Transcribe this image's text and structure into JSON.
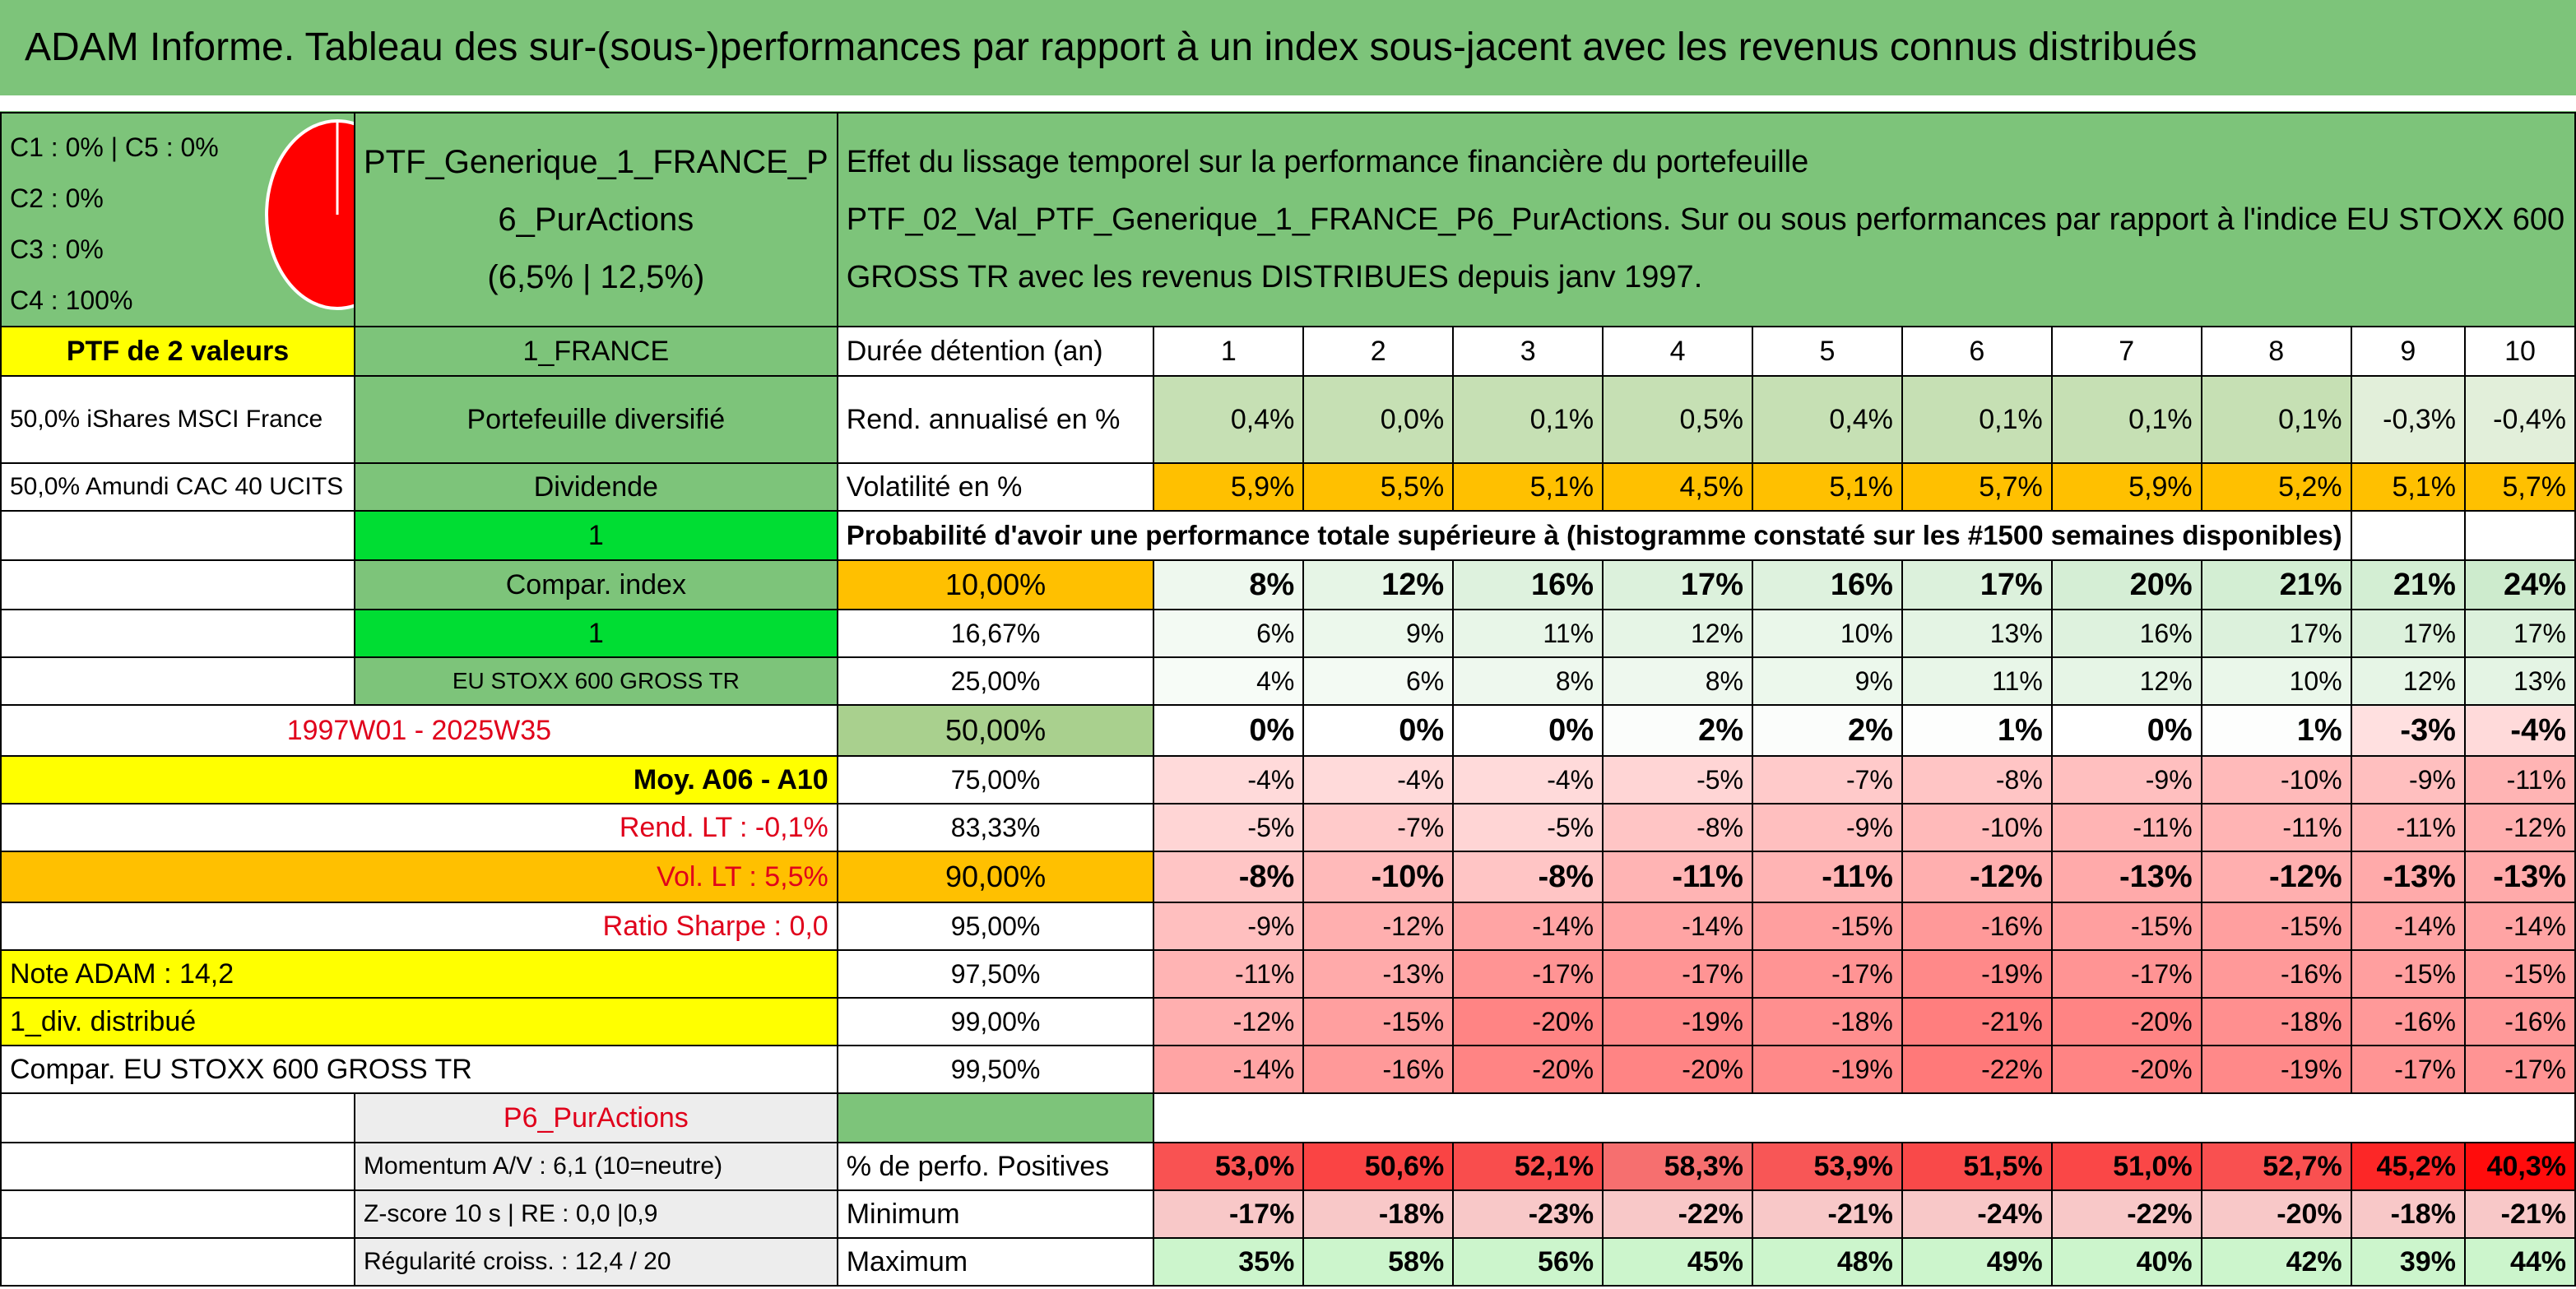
{
  "title": "ADAM Informe. Tableau des sur-(sous-)performances par rapport à un index sous-jacent avec les revenus connus distribués",
  "header": {
    "class_lines": [
      "C1 : 0% | C5 : 0%",
      "C2 : 0%",
      "C3 : 0%",
      "C4 : 100%"
    ],
    "portfolio_name_line1": "PTF_Generique_1_FRANCE_P",
    "portfolio_name_line2": "6_PurActions",
    "portfolio_name_line3": "(6,5% | 12,5%)",
    "effect_line1": "Effet du lissage temporel sur la performance financière du portefeuille",
    "effect_line2": "PTF_02_Val_PTF_Generique_1_FRANCE_P6_PurActions. Sur ou sous performances par rapport à l'indice EU STOXX 600",
    "effect_line3": "GROSS TR avec les revenus DISTRIBUES depuis janv 1997."
  },
  "left": {
    "ptf_count": "PTF de 2 valeurs",
    "holding1": "50,0% iShares MSCI France",
    "holding2": "50,0% Amundi CAC 40 UCITS",
    "country": "1_FRANCE",
    "type": "Portefeuille diversifié",
    "dividend": "Dividende",
    "one_a": "1",
    "compar_index": "Compar. index",
    "one_b": "1",
    "index_name": "EU STOXX 600 GROSS TR",
    "period": "1997W01 - 2025W35",
    "moy": "Moy. A06 - A10",
    "rend_lt": "Rend. LT : -0,1%",
    "vol_lt": "Vol. LT : 5,5%",
    "sharpe": "Ratio Sharpe : 0,0",
    "note": "Note ADAM : 14,2",
    "div": "1_div. distribué",
    "compar_eu": "Compar. EU STOXX 600 GROSS TR",
    "p6": "P6_PurActions",
    "momentum": "Momentum A/V : 6,1 (10=neutre)",
    "zscore": "Z-score 10 s | RE : 0,0 |0,9",
    "regularite": "Régularité croiss. : 12,4 / 20"
  },
  "table": {
    "duration_label": "Durée détention (an)",
    "years": [
      "1",
      "2",
      "3",
      "4",
      "5",
      "6",
      "7",
      "8",
      "9",
      "10"
    ],
    "rend_label": "Rend. annualisé en %",
    "rend": [
      "0,4%",
      "0,0%",
      "0,1%",
      "0,5%",
      "0,4%",
      "0,1%",
      "0,1%",
      "0,1%",
      "-0,3%",
      "-0,4%"
    ],
    "vol_label": "Volatilité en %",
    "vol": [
      "5,9%",
      "5,5%",
      "5,1%",
      "4,5%",
      "5,1%",
      "5,7%",
      "5,9%",
      "5,2%",
      "5,1%",
      "5,7%"
    ],
    "prob_label": "Probabilité d'avoir une performance totale supérieure à (histogramme constaté sur les #1500 semaines disponibles)",
    "prob_rows": [
      {
        "threshold": "10,00%",
        "values": [
          "8%",
          "12%",
          "16%",
          "17%",
          "16%",
          "17%",
          "20%",
          "21%",
          "21%",
          "24%"
        ]
      },
      {
        "threshold": "16,67%",
        "values": [
          "6%",
          "9%",
          "11%",
          "12%",
          "10%",
          "13%",
          "16%",
          "17%",
          "17%",
          "17%"
        ]
      },
      {
        "threshold": "25,00%",
        "values": [
          "4%",
          "6%",
          "8%",
          "8%",
          "9%",
          "11%",
          "12%",
          "10%",
          "12%",
          "13%"
        ]
      },
      {
        "threshold": "50,00%",
        "values": [
          "0%",
          "0%",
          "0%",
          "2%",
          "2%",
          "1%",
          "0%",
          "1%",
          "-3%",
          "-4%"
        ]
      },
      {
        "threshold": "75,00%",
        "values": [
          "-4%",
          "-4%",
          "-4%",
          "-5%",
          "-7%",
          "-8%",
          "-9%",
          "-10%",
          "-9%",
          "-11%"
        ]
      },
      {
        "threshold": "83,33%",
        "values": [
          "-5%",
          "-7%",
          "-5%",
          "-8%",
          "-9%",
          "-10%",
          "-11%",
          "-11%",
          "-11%",
          "-12%"
        ]
      },
      {
        "threshold": "90,00%",
        "values": [
          "-8%",
          "-10%",
          "-8%",
          "-11%",
          "-11%",
          "-12%",
          "-13%",
          "-12%",
          "-13%",
          "-13%"
        ]
      },
      {
        "threshold": "95,00%",
        "values": [
          "-9%",
          "-12%",
          "-14%",
          "-14%",
          "-15%",
          "-16%",
          "-15%",
          "-15%",
          "-14%",
          "-14%"
        ]
      },
      {
        "threshold": "97,50%",
        "values": [
          "-11%",
          "-13%",
          "-17%",
          "-17%",
          "-17%",
          "-19%",
          "-17%",
          "-16%",
          "-15%",
          "-15%"
        ]
      },
      {
        "threshold": "99,00%",
        "values": [
          "-12%",
          "-15%",
          "-20%",
          "-19%",
          "-18%",
          "-21%",
          "-20%",
          "-18%",
          "-16%",
          "-16%"
        ]
      },
      {
        "threshold": "99,50%",
        "values": [
          "-14%",
          "-16%",
          "-20%",
          "-20%",
          "-19%",
          "-22%",
          "-20%",
          "-19%",
          "-17%",
          "-17%"
        ]
      }
    ],
    "pos_label": "% de perfo. Positives",
    "pos": [
      "53,0%",
      "50,6%",
      "52,1%",
      "58,3%",
      "53,9%",
      "51,5%",
      "51,0%",
      "52,7%",
      "45,2%",
      "40,3%"
    ],
    "min_label": "Minimum",
    "min": [
      "-17%",
      "-18%",
      "-23%",
      "-22%",
      "-21%",
      "-24%",
      "-22%",
      "-20%",
      "-18%",
      "-21%"
    ],
    "max_label": "Maximum",
    "max": [
      "35%",
      "58%",
      "56%",
      "45%",
      "48%",
      "49%",
      "40%",
      "42%",
      "39%",
      "44%"
    ]
  },
  "colors": {
    "header_green": "#7dc47a",
    "yellow": "#ffff00",
    "bright_green": "#00dd33",
    "orange": "#ffc000",
    "red_text": "#e0001b",
    "pie_red": "#ff0000"
  }
}
